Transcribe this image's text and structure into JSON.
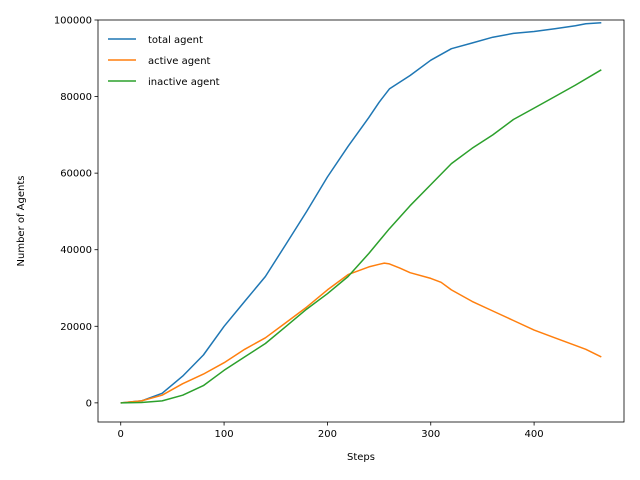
{
  "chart_data": {
    "type": "line",
    "title": "",
    "xlabel": "Steps",
    "ylabel": "Number of Agents",
    "xlim": [
      -22,
      487
    ],
    "ylim": [
      -5000,
      100000
    ],
    "xticks": [
      0,
      100,
      200,
      300,
      400
    ],
    "yticks": [
      0,
      20000,
      40000,
      60000,
      80000,
      100000
    ],
    "grid": false,
    "legend": "top-left",
    "series": [
      {
        "name": "total agent",
        "color": "#1f77b4",
        "x": [
          0,
          20,
          40,
          60,
          80,
          100,
          120,
          140,
          160,
          180,
          200,
          220,
          240,
          250,
          260,
          280,
          300,
          320,
          340,
          360,
          380,
          400,
          420,
          440,
          450,
          465
        ],
        "y": [
          0,
          500,
          2500,
          7000,
          12500,
          20000,
          26500,
          33000,
          41500,
          50000,
          59000,
          67000,
          74500,
          78500,
          82000,
          85500,
          89500,
          92500,
          94000,
          95500,
          96500,
          97000,
          97700,
          98500,
          99000,
          99300
        ]
      },
      {
        "name": "active agent",
        "color": "#ff7f0e",
        "x": [
          0,
          20,
          40,
          60,
          80,
          100,
          120,
          140,
          160,
          180,
          200,
          220,
          240,
          250,
          255,
          260,
          270,
          280,
          300,
          310,
          320,
          340,
          360,
          380,
          400,
          420,
          440,
          450,
          465
        ],
        "y": [
          0,
          500,
          2000,
          5000,
          7500,
          10500,
          14000,
          17000,
          21000,
          25000,
          29500,
          33500,
          35500,
          36200,
          36500,
          36300,
          35200,
          34000,
          32500,
          31500,
          29500,
          26500,
          24000,
          21500,
          19000,
          17000,
          15000,
          14000,
          12000
        ]
      },
      {
        "name": "inactive agent",
        "color": "#2ca02c",
        "x": [
          0,
          20,
          40,
          60,
          80,
          100,
          120,
          140,
          160,
          180,
          200,
          220,
          240,
          260,
          280,
          300,
          320,
          340,
          360,
          380,
          400,
          420,
          440,
          465
        ],
        "y": [
          0,
          100,
          500,
          2000,
          4500,
          8500,
          12000,
          15500,
          20000,
          24500,
          28500,
          33000,
          39000,
          45500,
          51500,
          57000,
          62500,
          66500,
          70000,
          74000,
          77000,
          80000,
          83000,
          87000
        ]
      }
    ]
  }
}
